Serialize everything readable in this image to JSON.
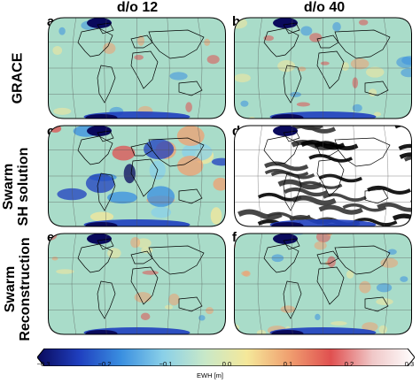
{
  "columns": {
    "left_title": "d/o 12",
    "right_title": "d/o 40"
  },
  "rows": {
    "grace": "GRACE",
    "swarm_sh": "Swarm\nSH solution",
    "swarm_recon": "Swarm\nReconstruction"
  },
  "panels": {
    "a": "a",
    "b": "b",
    "c": "c",
    "d": "d",
    "e": "e",
    "f": "f"
  },
  "colorbar": {
    "label": "EWH [m]",
    "ticks": [
      "−0.3",
      "−0.2",
      "−0.1",
      "0.0",
      "0.1",
      "0.2",
      "0.3"
    ],
    "range": [
      -0.3,
      0.3
    ],
    "colors": [
      "#0a0a5c",
      "#1f3fbf",
      "#3a8fe0",
      "#8ad0e8",
      "#c8e8c8",
      "#f5e89a",
      "#f0a070",
      "#e05050",
      "#f0c8c8",
      "#ffffff"
    ]
  },
  "map_style": {
    "projection": "Robinson",
    "ocean_base": "#a9dcc9",
    "coastline_color": "#000000",
    "graticule_color": "#555555"
  }
}
